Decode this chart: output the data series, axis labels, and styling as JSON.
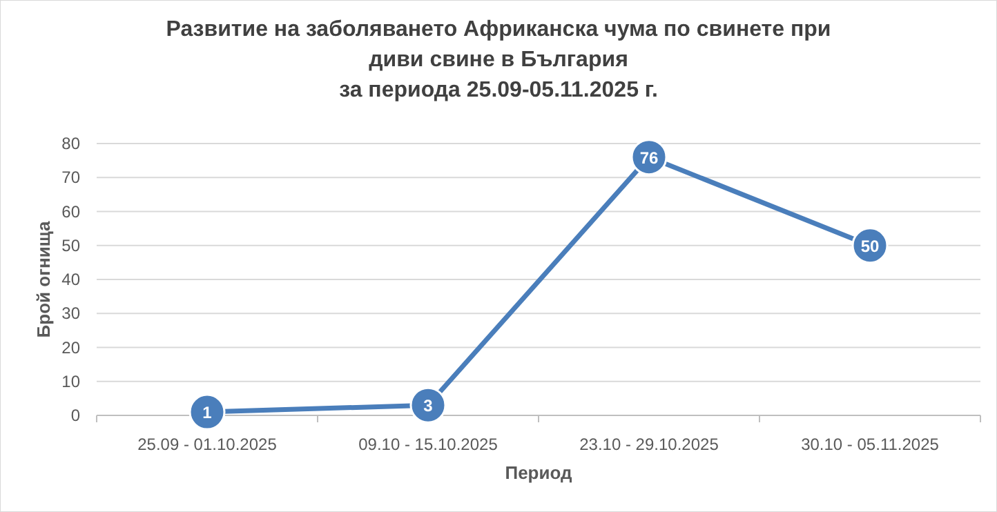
{
  "chart_data": {
    "type": "line",
    "title": "Развитие на заболяването Африканска чума по свинете при\nдиви свине в България\nза периода 25.09-05.11.2025 г.",
    "xlabel": "Период",
    "ylabel": "Брой огнища",
    "categories": [
      "25.09 - 01.10.2025",
      "09.10 - 15.10.2025",
      "23.10 - 29.10.2025",
      "30.10 - 05.11.2025"
    ],
    "series": [
      {
        "color": "#4a7ebb",
        "values": [
          1,
          3,
          76,
          50
        ]
      }
    ],
    "ylim": [
      0,
      80
    ],
    "yticks": [
      0,
      10,
      20,
      30,
      40,
      50,
      60,
      70,
      80
    ],
    "grid": "y",
    "data_labels": true,
    "marker": "circle",
    "line_style": "solid"
  }
}
